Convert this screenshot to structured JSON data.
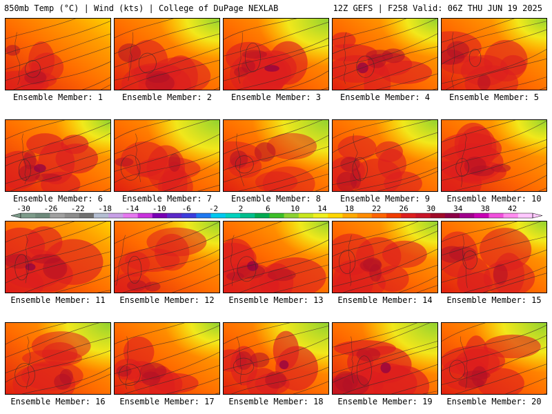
{
  "header": {
    "title_left": "850mb Temp (°C) | Wind (kts) | College of DuPage NEXLAB",
    "title_right": "12Z GEFS | F258 Valid: 06Z THU JUN 19 2025"
  },
  "panel_label_prefix": "Ensemble Member:",
  "members": [
    {
      "id": 1,
      "label": "Ensemble Member: 1",
      "intensity": 0.6,
      "green": 0.0
    },
    {
      "id": 2,
      "label": "Ensemble Member: 2",
      "intensity": 0.7,
      "green": 0.15
    },
    {
      "id": 3,
      "label": "Ensemble Member: 3",
      "intensity": 0.8,
      "green": 0.35
    },
    {
      "id": 4,
      "label": "Ensemble Member: 4",
      "intensity": 0.8,
      "green": 0.1
    },
    {
      "id": 5,
      "label": "Ensemble Member: 5",
      "intensity": 0.7,
      "green": 0.05
    },
    {
      "id": 6,
      "label": "Ensemble Member: 6",
      "intensity": 0.85,
      "green": 0.05
    },
    {
      "id": 7,
      "label": "Ensemble Member: 7",
      "intensity": 0.55,
      "green": 0.4
    },
    {
      "id": 8,
      "label": "Ensemble Member: 8",
      "intensity": 0.45,
      "green": 0.45
    },
    {
      "id": 9,
      "label": "Ensemble Member: 9",
      "intensity": 0.7,
      "green": 0.2
    },
    {
      "id": 10,
      "label": "Ensemble Member: 10",
      "intensity": 0.75,
      "green": 0.05
    },
    {
      "id": 11,
      "label": "Ensemble Member: 11",
      "intensity": 0.8,
      "green": 0.0
    },
    {
      "id": 12,
      "label": "Ensemble Member: 12",
      "intensity": 0.55,
      "green": 0.15
    },
    {
      "id": 13,
      "label": "Ensemble Member: 13",
      "intensity": 0.8,
      "green": 0.05
    },
    {
      "id": 14,
      "label": "Ensemble Member: 14",
      "intensity": 0.65,
      "green": 0.1
    },
    {
      "id": 15,
      "label": "Ensemble Member: 15",
      "intensity": 0.7,
      "green": 0.05
    },
    {
      "id": 16,
      "label": "Ensemble Member: 16",
      "intensity": 0.55,
      "green": 0.4
    },
    {
      "id": 17,
      "label": "Ensemble Member: 17",
      "intensity": 0.75,
      "green": 0.05
    },
    {
      "id": 18,
      "label": "Ensemble Member: 18",
      "intensity": 0.85,
      "green": 0.45
    },
    {
      "id": 19,
      "label": "Ensemble Member: 19",
      "intensity": 0.9,
      "green": 0.45
    },
    {
      "id": 20,
      "label": "Ensemble Member: 20",
      "intensity": 0.75,
      "green": 0.4
    }
  ],
  "colorbar": {
    "ticks": [
      "-30",
      "-26",
      "-22",
      "-18",
      "-14",
      "-10",
      "-6",
      "-2",
      "2",
      "6",
      "10",
      "14",
      "18",
      "22",
      "26",
      "30",
      "34",
      "38",
      "42"
    ],
    "colors": [
      "#7d9b8a",
      "#6e8a7c",
      "#a0a0a0",
      "#8c8c8c",
      "#707070",
      "#b4bed2",
      "#c8a0e6",
      "#e678f0",
      "#c832dc",
      "#7800b4",
      "#5a28c8",
      "#3c3cdc",
      "#1e78f0",
      "#00c8f0",
      "#00d2be",
      "#00be8c",
      "#00aa50",
      "#3cbe28",
      "#8cd232",
      "#c8e61e",
      "#f0f01e",
      "#ffd700",
      "#ffaa00",
      "#ff8c00",
      "#ff6400",
      "#f03c00",
      "#dc1e1e",
      "#c81428",
      "#a00a28",
      "#8c0046",
      "#a0008c",
      "#c800b4",
      "#f050dc",
      "#ff8cf0",
      "#ffc8ff"
    ]
  }
}
